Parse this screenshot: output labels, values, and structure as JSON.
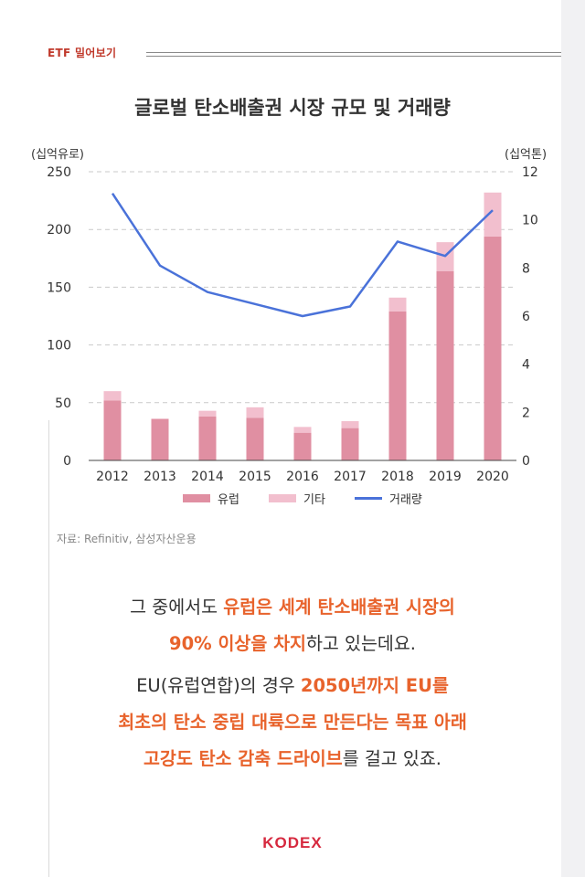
{
  "header": {
    "label": "ETF 밀어보기"
  },
  "chart_data": {
    "type": "bar",
    "title": "글로벌 탄소배출권 시장 규모 및 거래량",
    "left_axis_label": "(십억유로)",
    "right_axis_label": "(십억톤)",
    "categories": [
      "2012",
      "2013",
      "2014",
      "2015",
      "2016",
      "2017",
      "2018",
      "2019",
      "2020"
    ],
    "ylim": [
      0,
      250
    ],
    "yticks": [
      "0",
      "50",
      "100",
      "150",
      "200",
      "250"
    ],
    "y2lim": [
      0,
      12
    ],
    "y2ticks": [
      "0",
      "2",
      "4",
      "6",
      "8",
      "10",
      "12"
    ],
    "stacked": true,
    "grid": true,
    "legend_position": "bottom",
    "series": [
      {
        "name": "유럽",
        "kind": "bar",
        "axis": "left",
        "color": "#e08fa2",
        "values": [
          52,
          36,
          38,
          37,
          24,
          28,
          129,
          164,
          194
        ]
      },
      {
        "name": "기타",
        "kind": "bar",
        "axis": "left",
        "color": "#f2bfce",
        "values": [
          8,
          0,
          5,
          9,
          5,
          6,
          12,
          25,
          38
        ]
      },
      {
        "name": "거래량",
        "kind": "line",
        "axis": "right",
        "color": "#4a72d9",
        "values": [
          11.1,
          8.1,
          7.0,
          6.5,
          6.0,
          6.4,
          9.1,
          8.5,
          10.4
        ]
      }
    ]
  },
  "source": "자료: Refinitiv, 삼성자산운용",
  "body": {
    "p1_l1_a": "그 중에서도 ",
    "p1_l1_b": "유럽은 세계 탄소배출권 시장의",
    "p1_l2_a": "90% 이상을 차지",
    "p1_l2_b": "하고 있는데요.",
    "p2_l1_a": "EU(유럽연합)의 경우 ",
    "p2_l1_b": "2050년까지 EU를",
    "p2_l2": "최초의 탄소 중립 대륙으로 만든다는 목표 아래",
    "p2_l3_a": "고강도 탄소 감축 드라이브",
    "p2_l3_b": "를 걸고 있죠."
  },
  "logo": "KODEX"
}
